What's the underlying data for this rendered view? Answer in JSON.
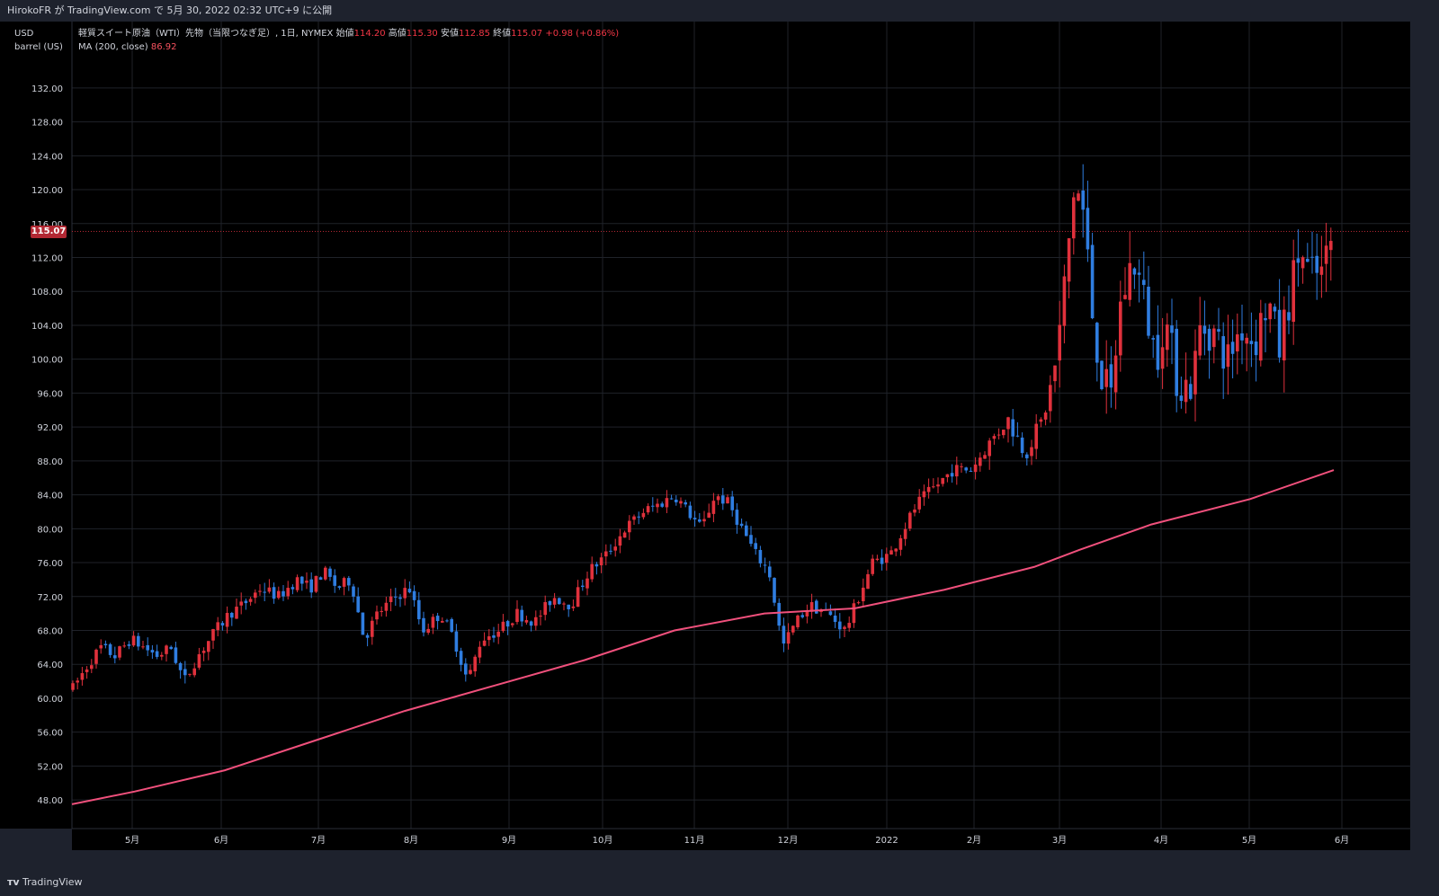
{
  "header": {
    "published": "HirokoFR が TradingView.com で 5月 30, 2022 02:32 UTC+9 に公開"
  },
  "units": {
    "currency": "USD",
    "unit": "barrel (US)"
  },
  "legend": {
    "symbol": "軽質スイート原油（WTI）先物（当限つなぎ足）, 1日, NYMEX",
    "open_label": "始値",
    "open": "114.20",
    "high_label": "高値",
    "high": "115.30",
    "low_label": "安値",
    "low": "112.85",
    "close_label": "終値",
    "close": "115.07",
    "change": "+0.98 (+0.86%)",
    "ma_label": "MA (200, close)",
    "ma_value": "86.92"
  },
  "price_tag": "115.07",
  "footer": {
    "brand": "TradingView"
  },
  "colors": {
    "up": "#e0313c",
    "down": "#2f7de0",
    "ma": "#f0507c",
    "bg": "#000000",
    "grid": "#1f2229"
  },
  "chart_data": {
    "type": "candlestick",
    "title": "軽質スイート原油（WTI）先物（当限つなぎ足）, 1日, NYMEX",
    "ylabel": "USD / barrel (US)",
    "ylim": [
      46.0,
      134.0
    ],
    "y_ticks": [
      "132.00",
      "128.00",
      "124.00",
      "120.00",
      "116.00",
      "112.00",
      "108.00",
      "104.00",
      "100.00",
      "96.00",
      "92.00",
      "88.00",
      "84.00",
      "80.00",
      "76.00",
      "72.00",
      "68.00",
      "64.00",
      "60.00",
      "56.00",
      "52.00",
      "48.00"
    ],
    "x_ticks": [
      "5月",
      "6月",
      "7月",
      "8月",
      "9月",
      "10月",
      "11月",
      "12月",
      "2022",
      "2月",
      "3月",
      "4月",
      "5月",
      "6月"
    ],
    "last_close": 115.07,
    "price_path": [
      [
        60,
        62
      ],
      [
        64,
        63
      ],
      [
        80,
        61
      ],
      [
        98,
        64
      ],
      [
        112,
        66
      ],
      [
        128,
        65
      ],
      [
        145,
        67
      ],
      [
        160,
        66
      ],
      [
        175,
        65
      ],
      [
        190,
        66
      ],
      [
        205,
        62
      ],
      [
        220,
        65
      ],
      [
        240,
        68
      ],
      [
        255,
        70
      ],
      [
        270,
        71
      ],
      [
        290,
        73
      ],
      [
        310,
        72
      ],
      [
        330,
        74
      ],
      [
        345,
        73
      ],
      [
        360,
        75
      ],
      [
        375,
        73
      ],
      [
        390,
        74
      ],
      [
        405,
        67
      ],
      [
        420,
        70
      ],
      [
        440,
        72
      ],
      [
        455,
        73
      ],
      [
        470,
        68
      ],
      [
        490,
        70
      ],
      [
        505,
        67
      ],
      [
        520,
        62
      ],
      [
        535,
        67
      ],
      [
        555,
        68
      ],
      [
        575,
        70
      ],
      [
        595,
        69
      ],
      [
        615,
        72
      ],
      [
        635,
        71
      ],
      [
        655,
        75
      ],
      [
        675,
        77
      ],
      [
        695,
        80
      ],
      [
        715,
        82
      ],
      [
        735,
        83
      ],
      [
        750,
        84
      ],
      [
        765,
        82
      ],
      [
        780,
        80
      ],
      [
        795,
        84
      ],
      [
        810,
        83
      ],
      [
        825,
        80
      ],
      [
        840,
        77
      ],
      [
        855,
        75
      ],
      [
        862,
        71
      ],
      [
        870,
        66
      ],
      [
        885,
        69
      ],
      [
        900,
        71
      ],
      [
        920,
        70
      ],
      [
        940,
        68
      ],
      [
        955,
        72
      ],
      [
        970,
        76
      ],
      [
        990,
        77
      ],
      [
        1005,
        80
      ],
      [
        1020,
        83
      ],
      [
        1040,
        85
      ],
      [
        1060,
        87
      ],
      [
        1080,
        87
      ],
      [
        1100,
        90
      ],
      [
        1120,
        93
      ],
      [
        1140,
        89
      ],
      [
        1160,
        93
      ],
      [
        1175,
        100
      ],
      [
        1185,
        110
      ],
      [
        1195,
        121
      ],
      [
        1205,
        117
      ],
      [
        1215,
        105
      ],
      [
        1225,
        98
      ],
      [
        1235,
        95
      ],
      [
        1245,
        106
      ],
      [
        1260,
        112
      ],
      [
        1270,
        108
      ],
      [
        1285,
        100
      ],
      [
        1295,
        105
      ],
      [
        1310,
        97
      ],
      [
        1325,
        97
      ],
      [
        1335,
        104
      ],
      [
        1350,
        103
      ],
      [
        1365,
        100
      ],
      [
        1380,
        104
      ],
      [
        1395,
        102
      ],
      [
        1410,
        107
      ],
      [
        1422,
        101
      ],
      [
        1435,
        108
      ],
      [
        1445,
        113
      ],
      [
        1455,
        110
      ],
      [
        1470,
        110
      ],
      [
        1483,
        115
      ]
    ],
    "ma_path": [
      [
        80,
        47.5
      ],
      [
        150,
        49.0
      ],
      [
        250,
        51.5
      ],
      [
        350,
        55.0
      ],
      [
        450,
        58.5
      ],
      [
        550,
        61.5
      ],
      [
        650,
        64.5
      ],
      [
        750,
        68.0
      ],
      [
        850,
        70.0
      ],
      [
        950,
        70.6
      ],
      [
        1050,
        72.8
      ],
      [
        1150,
        75.5
      ],
      [
        1200,
        77.5
      ],
      [
        1280,
        80.5
      ],
      [
        1390,
        83.5
      ],
      [
        1483,
        86.92
      ]
    ]
  }
}
